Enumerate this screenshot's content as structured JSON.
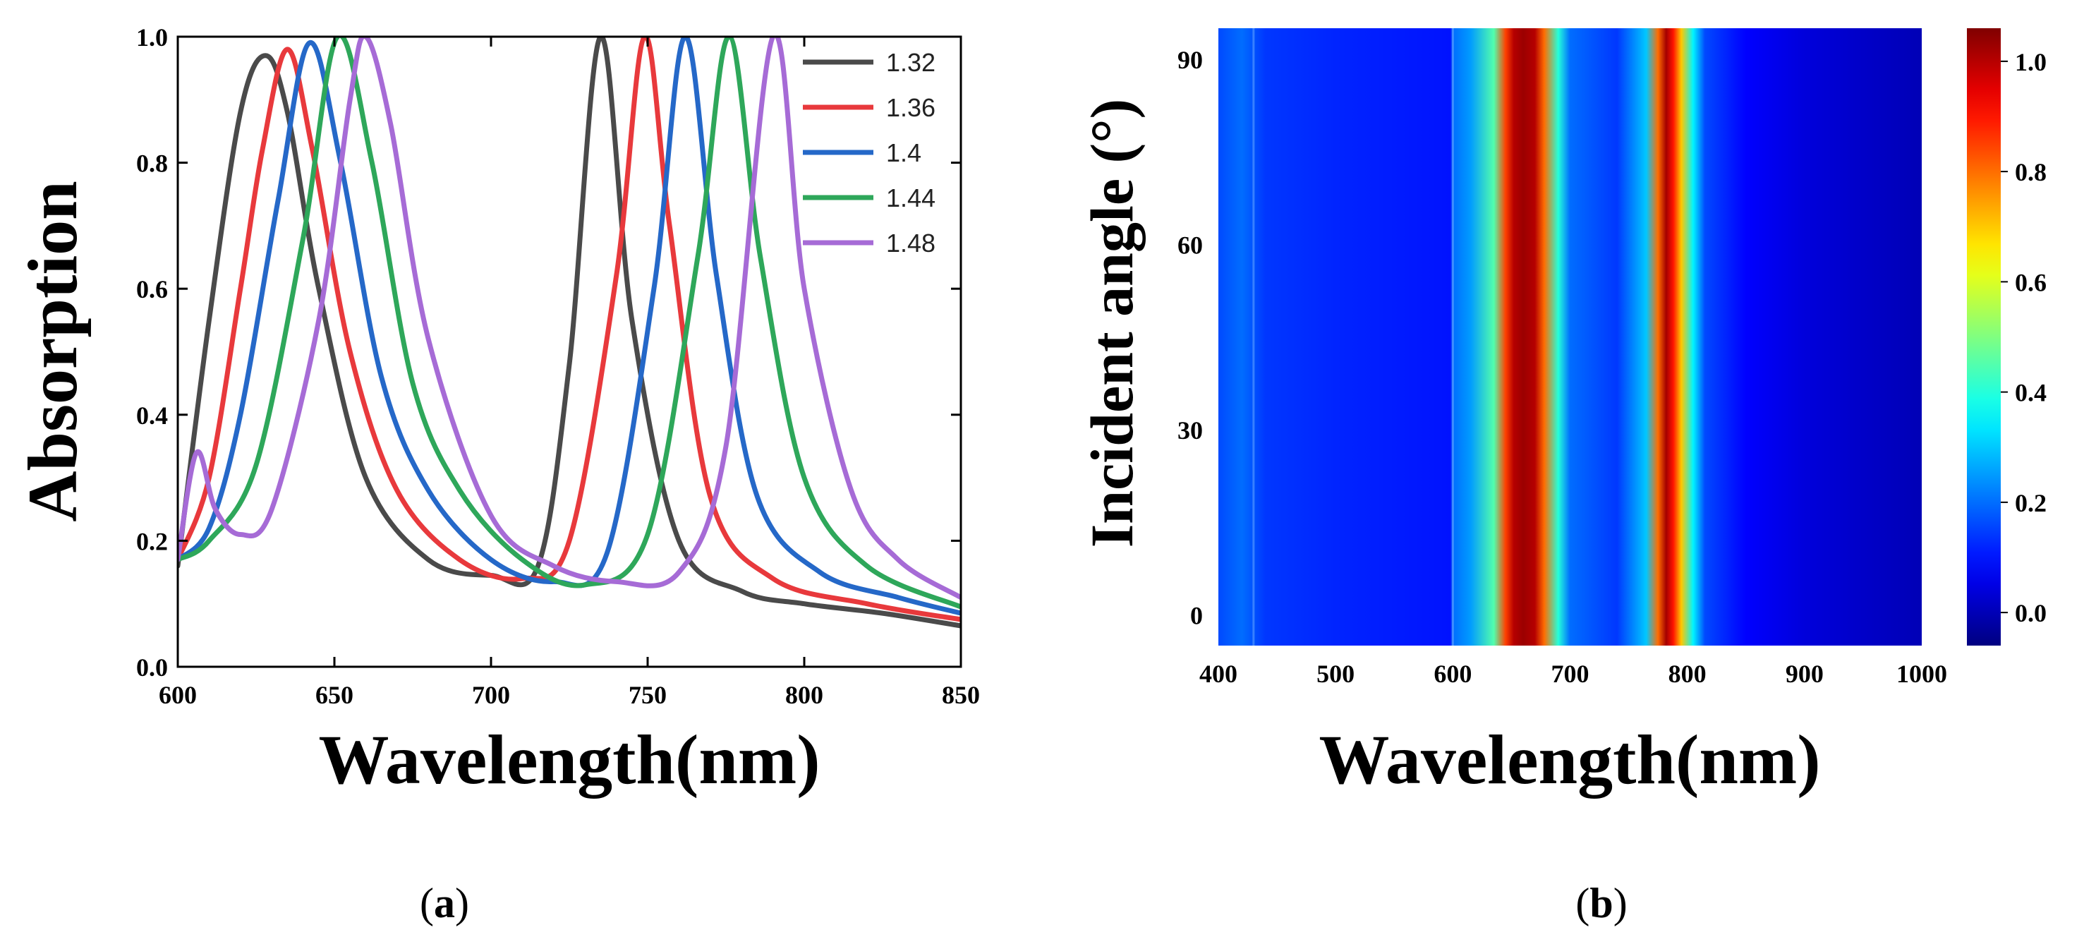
{
  "chart_data": [
    {
      "type": "line",
      "panel": "(a)",
      "panel_letter": "a",
      "xlabel": "Wavelength(nm)",
      "ylabel": "Absorption",
      "xlim": [
        600,
        850
      ],
      "ylim": [
        0,
        1.0
      ],
      "xticks": [
        600,
        650,
        700,
        750,
        800,
        850
      ],
      "yticks": [
        0.0,
        0.2,
        0.4,
        0.6,
        0.8,
        1.0
      ],
      "xtick_labels": [
        "600",
        "650",
        "700",
        "750",
        "800",
        "850"
      ],
      "ytick_labels": [
        "0.0",
        "0.2",
        "0.4",
        "0.6",
        "0.8",
        "1.0"
      ],
      "legend_position": "top-right",
      "series": [
        {
          "name": "1.32",
          "color": "#4a4a4a",
          "x": [
            600,
            610,
            620,
            628,
            635,
            645,
            660,
            680,
            700,
            715,
            725,
            735,
            745,
            760,
            780,
            800,
            825,
            850
          ],
          "y": [
            0.16,
            0.55,
            0.88,
            0.97,
            0.88,
            0.6,
            0.3,
            0.17,
            0.145,
            0.16,
            0.48,
            1.0,
            0.55,
            0.2,
            0.12,
            0.1,
            0.085,
            0.065
          ]
        },
        {
          "name": "1.36",
          "color": "#e8393c",
          "x": [
            600,
            610,
            620,
            627,
            635,
            643,
            655,
            670,
            690,
            710,
            725,
            740,
            749,
            757,
            770,
            790,
            820,
            850
          ],
          "y": [
            0.17,
            0.3,
            0.6,
            0.82,
            0.98,
            0.82,
            0.5,
            0.28,
            0.17,
            0.14,
            0.2,
            0.62,
            1.0,
            0.7,
            0.27,
            0.14,
            0.1,
            0.075
          ]
        },
        {
          "name": "1.4",
          "color": "#2568c8",
          "x": [
            600,
            610,
            620,
            632,
            642,
            652,
            665,
            680,
            700,
            720,
            737,
            752,
            762,
            772,
            785,
            805,
            830,
            850
          ],
          "y": [
            0.17,
            0.22,
            0.4,
            0.74,
            0.99,
            0.8,
            0.46,
            0.28,
            0.17,
            0.135,
            0.18,
            0.6,
            1.0,
            0.62,
            0.27,
            0.15,
            0.11,
            0.085
          ]
        },
        {
          "name": "1.44",
          "color": "#2ea75a",
          "x": [
            600,
            610,
            625,
            640,
            651,
            662,
            675,
            690,
            710,
            730,
            750,
            766,
            776,
            786,
            800,
            820,
            850
          ],
          "y": [
            0.17,
            0.2,
            0.32,
            0.68,
            1.0,
            0.8,
            0.45,
            0.28,
            0.17,
            0.13,
            0.21,
            0.65,
            1.0,
            0.65,
            0.3,
            0.16,
            0.095
          ]
        },
        {
          "name": "1.48",
          "color": "#a66bd6",
          "x": [
            600,
            606,
            612,
            620,
            630,
            645,
            655,
            660,
            668,
            680,
            700,
            720,
            740,
            760,
            775,
            790,
            800,
            815,
            830,
            850
          ],
          "y": [
            0.17,
            0.34,
            0.25,
            0.21,
            0.25,
            0.55,
            0.9,
            1.0,
            0.86,
            0.52,
            0.24,
            0.16,
            0.135,
            0.15,
            0.35,
            1.0,
            0.6,
            0.28,
            0.17,
            0.11
          ]
        }
      ]
    },
    {
      "type": "heatmap",
      "panel": "(b)",
      "panel_letter": "b",
      "xlabel": "Wavelength(nm)",
      "ylabel": "Incident angle (°)",
      "xlim": [
        400,
        1000
      ],
      "ylim": [
        -5,
        95
      ],
      "xticks": [
        400,
        500,
        600,
        700,
        800,
        900,
        1000
      ],
      "yticks": [
        0,
        30,
        60,
        90
      ],
      "xtick_labels": [
        "400",
        "500",
        "600",
        "700",
        "800",
        "900",
        "1000"
      ],
      "ytick_labels": [
        "0",
        "30",
        "60",
        "90"
      ],
      "colorbar": {
        "min": -0.06,
        "max": 1.06,
        "ticks": [
          0.0,
          0.2,
          0.4,
          0.6,
          0.8,
          1.0
        ],
        "tick_labels": [
          "0.0",
          "0.2",
          "0.4",
          "0.6",
          "0.8",
          "1.0"
        ],
        "colormap": "jet"
      },
      "absorption_vs_wavelength": {
        "note": "angle-independent: each wavelength column has constant value",
        "wavelength": [
          400,
          420,
          430,
          440,
          500,
          550,
          598,
          600,
          615,
          635,
          645,
          652,
          660,
          670,
          678,
          690,
          700,
          740,
          765,
          775,
          782,
          788,
          795,
          805,
          815,
          850,
          900,
          950,
          1000
        ],
        "value": [
          0.16,
          0.2,
          0.17,
          0.14,
          0.12,
          0.11,
          0.1,
          0.2,
          0.25,
          0.45,
          0.85,
          1.0,
          1.03,
          1.0,
          0.8,
          0.4,
          0.2,
          0.14,
          0.3,
          0.8,
          1.02,
          0.9,
          0.7,
          0.35,
          0.16,
          0.08,
          0.04,
          0.02,
          0.0
        ]
      }
    }
  ]
}
